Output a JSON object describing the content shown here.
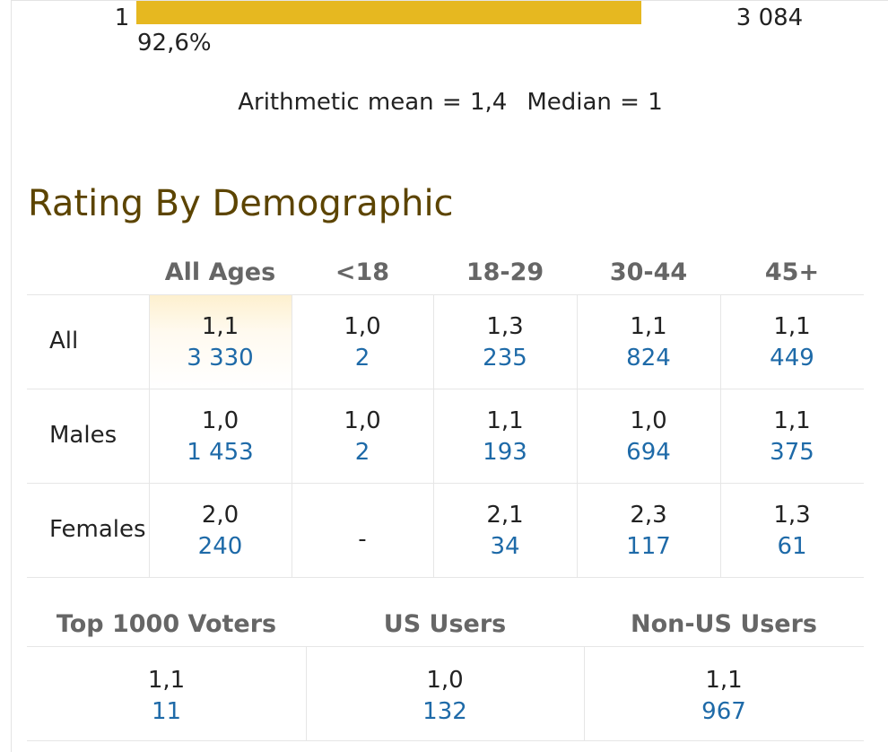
{
  "histogram": {
    "rating": "1",
    "percent": "92,6%",
    "count": "3 084",
    "bar_fraction": 0.926,
    "bar_color": "#e6b820"
  },
  "stats": {
    "mean": "Arithmetic mean = 1,4",
    "median": "Median = 1"
  },
  "demographic": {
    "title": "Rating By Demographic",
    "columns": [
      "All Ages",
      "<18",
      "18-29",
      "30-44",
      "45+"
    ],
    "rows": [
      {
        "label": "All",
        "cells": [
          {
            "rating": "1,1",
            "votes": "3 330"
          },
          {
            "rating": "1,0",
            "votes": "2"
          },
          {
            "rating": "1,3",
            "votes": "235"
          },
          {
            "rating": "1,1",
            "votes": "824"
          },
          {
            "rating": "1,1",
            "votes": "449"
          }
        ]
      },
      {
        "label": "Males",
        "cells": [
          {
            "rating": "1,0",
            "votes": "1 453"
          },
          {
            "rating": "1,0",
            "votes": "2"
          },
          {
            "rating": "1,1",
            "votes": "193"
          },
          {
            "rating": "1,0",
            "votes": "694"
          },
          {
            "rating": "1,1",
            "votes": "375"
          }
        ]
      },
      {
        "label": "Females",
        "cells": [
          {
            "rating": "2,0",
            "votes": "240"
          },
          {
            "rating": "-",
            "votes": ""
          },
          {
            "rating": "2,1",
            "votes": "34"
          },
          {
            "rating": "2,3",
            "votes": "117"
          },
          {
            "rating": "1,3",
            "votes": "61"
          }
        ]
      }
    ]
  },
  "groups": {
    "columns": [
      "Top 1000 Voters",
      "US Users",
      "Non-US Users"
    ],
    "cells": [
      {
        "rating": "1,1",
        "votes": "11"
      },
      {
        "rating": "1,0",
        "votes": "132"
      },
      {
        "rating": "1,1",
        "votes": "967"
      }
    ]
  },
  "colors": {
    "title": "#5c4400",
    "votes_link": "#1e6aa8",
    "header": "#666666"
  }
}
